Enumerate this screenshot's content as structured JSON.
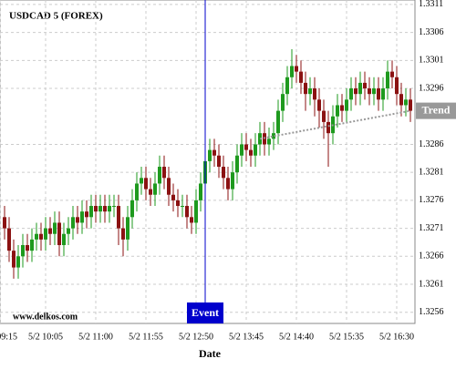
{
  "chart_data": {
    "type": "candlestick",
    "title": "USDCAD 5 (FOREX)",
    "x_label": "Date",
    "watermark": "www.delkos.com",
    "x": [
      "5/2 09:20",
      "5/2 09:25",
      "5/2 09:30",
      "5/2 09:35",
      "5/2 09:40",
      "5/2 09:45",
      "5/2 09:50",
      "5/2 09:55",
      "5/2 10:00",
      "5/2 10:05",
      "5/2 10:10",
      "5/2 10:15",
      "5/2 10:20",
      "5/2 10:25",
      "5/2 10:30",
      "5/2 10:35",
      "5/2 10:40",
      "5/2 10:45",
      "5/2 10:50",
      "5/2 10:55",
      "5/2 11:00",
      "5/2 11:05",
      "5/2 11:10",
      "5/2 11:15",
      "5/2 11:20",
      "5/2 11:25",
      "5/2 11:30",
      "5/2 11:35",
      "5/2 11:40",
      "5/2 11:45",
      "5/2 11:50",
      "5/2 11:55",
      "5/2 12:00",
      "5/2 12:05",
      "5/2 12:10",
      "5/2 12:15",
      "5/2 12:20",
      "5/2 12:25",
      "5/2 12:30",
      "5/2 12:35",
      "5/2 12:40",
      "5/2 12:45",
      "5/2 12:50",
      "5/2 12:55",
      "5/2 13:00",
      "5/2 13:05",
      "5/2 13:10",
      "5/2 13:15",
      "5/2 13:20",
      "5/2 13:25",
      "5/2 13:30",
      "5/2 13:35",
      "5/2 13:40",
      "5/2 13:45",
      "5/2 13:50",
      "5/2 13:55",
      "5/2 14:00",
      "5/2 14:05",
      "5/2 14:10",
      "5/2 14:15",
      "5/2 14:20",
      "5/2 14:25",
      "5/2 14:30",
      "5/2 14:35",
      "5/2 14:40",
      "5/2 14:45",
      "5/2 14:50",
      "5/2 14:55",
      "5/2 15:00",
      "5/2 15:05",
      "5/2 15:10",
      "5/2 15:15",
      "5/2 15:20",
      "5/2 15:25",
      "5/2 15:30",
      "5/2 15:35",
      "5/2 15:40",
      "5/2 15:45",
      "5/2 15:50",
      "5/2 15:55",
      "5/2 16:00",
      "5/2 16:05",
      "5/2 16:10",
      "5/2 16:15",
      "5/2 16:20",
      "5/2 16:25",
      "5/2 16:30",
      "5/2 16:35",
      "5/2 16:40",
      "5/2 16:45"
    ],
    "open": [
      1.3273,
      1.3271,
      1.3267,
      1.3264,
      1.3266,
      1.3268,
      1.3267,
      1.3269,
      1.327,
      1.3269,
      1.3271,
      1.327,
      1.3272,
      1.3268,
      1.327,
      1.3271,
      1.3273,
      1.3272,
      1.3274,
      1.3273,
      1.3275,
      1.3274,
      1.3275,
      1.3274,
      1.3275,
      1.3275,
      1.3271,
      1.3269,
      1.3273,
      1.3276,
      1.3279,
      1.328,
      1.3278,
      1.3277,
      1.3279,
      1.3282,
      1.328,
      1.3277,
      1.3276,
      1.3275,
      1.3275,
      1.3273,
      1.3272,
      1.3276,
      1.3279,
      1.3283,
      1.3285,
      1.3284,
      1.3282,
      1.328,
      1.3278,
      1.3281,
      1.3284,
      1.3286,
      1.3285,
      1.3284,
      1.3286,
      1.3288,
      1.3286,
      1.3287,
      1.3288,
      1.3292,
      1.3295,
      1.3298,
      1.33,
      1.3299,
      1.3297,
      1.3295,
      1.3296,
      1.3294,
      1.3292,
      1.329,
      1.3288,
      1.3291,
      1.3293,
      1.3292,
      1.3294,
      1.3296,
      1.3295,
      1.3297,
      1.3296,
      1.3295,
      1.3296,
      1.3294,
      1.3296,
      1.3299,
      1.3298,
      1.3295,
      1.3293,
      1.3294
    ],
    "high": [
      1.3275,
      1.3273,
      1.3269,
      1.3268,
      1.327,
      1.327,
      1.3271,
      1.3272,
      1.3272,
      1.3273,
      1.3273,
      1.3274,
      1.3274,
      1.3272,
      1.3273,
      1.3275,
      1.3275,
      1.3276,
      1.3276,
      1.3277,
      1.3277,
      1.3277,
      1.3277,
      1.3277,
      1.3277,
      1.3277,
      1.3273,
      1.3275,
      1.3278,
      1.3281,
      1.3282,
      1.3282,
      1.328,
      1.3281,
      1.3284,
      1.3284,
      1.3282,
      1.3279,
      1.3278,
      1.3277,
      1.3277,
      1.3275,
      1.3278,
      1.3281,
      1.3285,
      1.3287,
      1.3287,
      1.3286,
      1.3284,
      1.3282,
      1.3283,
      1.3286,
      1.3288,
      1.3288,
      1.3287,
      1.3288,
      1.329,
      1.329,
      1.3289,
      1.329,
      1.3294,
      1.3297,
      1.33,
      1.3303,
      1.3302,
      1.3301,
      1.3299,
      1.3298,
      1.3298,
      1.3296,
      1.3294,
      1.3292,
      1.3293,
      1.3295,
      1.3295,
      1.3296,
      1.3298,
      1.3298,
      1.3299,
      1.3299,
      1.3298,
      1.3298,
      1.3298,
      1.3298,
      1.3301,
      1.3301,
      1.33,
      1.3297,
      1.3296,
      1.3296
    ],
    "low": [
      1.3269,
      1.3265,
      1.3262,
      1.3262,
      1.3264,
      1.3265,
      1.3265,
      1.3267,
      1.3267,
      1.3267,
      1.3268,
      1.3268,
      1.3266,
      1.3266,
      1.3268,
      1.3269,
      1.327,
      1.327,
      1.3271,
      1.3271,
      1.3272,
      1.3272,
      1.3272,
      1.3272,
      1.3273,
      1.3268,
      1.3266,
      1.3267,
      1.3271,
      1.3274,
      1.3277,
      1.3276,
      1.3275,
      1.3275,
      1.3277,
      1.3278,
      1.3275,
      1.3274,
      1.3273,
      1.3273,
      1.3271,
      1.327,
      1.327,
      1.3274,
      1.3277,
      1.3281,
      1.3282,
      1.328,
      1.3278,
      1.3276,
      1.3276,
      1.3279,
      1.3282,
      1.3283,
      1.3282,
      1.3282,
      1.3284,
      1.3284,
      1.3284,
      1.3285,
      1.3286,
      1.329,
      1.3293,
      1.3296,
      1.3297,
      1.3295,
      1.3292,
      1.3293,
      1.3291,
      1.3289,
      1.3287,
      1.3282,
      1.3286,
      1.3289,
      1.329,
      1.329,
      1.3292,
      1.3293,
      1.3293,
      1.3294,
      1.3293,
      1.3293,
      1.3292,
      1.3292,
      1.3294,
      1.3296,
      1.3293,
      1.3291,
      1.3291,
      1.329
    ],
    "close": [
      1.3271,
      1.3267,
      1.3264,
      1.3266,
      1.3268,
      1.3267,
      1.3269,
      1.327,
      1.3269,
      1.3271,
      1.327,
      1.3272,
      1.3268,
      1.327,
      1.3271,
      1.3273,
      1.3272,
      1.3274,
      1.3273,
      1.3275,
      1.3274,
      1.3275,
      1.3274,
      1.3275,
      1.3275,
      1.3271,
      1.3269,
      1.3273,
      1.3276,
      1.3279,
      1.328,
      1.3278,
      1.3277,
      1.3279,
      1.3282,
      1.328,
      1.3277,
      1.3276,
      1.3275,
      1.3275,
      1.3273,
      1.3272,
      1.3276,
      1.3279,
      1.3283,
      1.3285,
      1.3284,
      1.3282,
      1.328,
      1.3278,
      1.3281,
      1.3284,
      1.3286,
      1.3285,
      1.3284,
      1.3286,
      1.3288,
      1.3286,
      1.3287,
      1.3288,
      1.3292,
      1.3295,
      1.3298,
      1.33,
      1.3299,
      1.3297,
      1.3295,
      1.3296,
      1.3294,
      1.3292,
      1.329,
      1.3288,
      1.3291,
      1.3293,
      1.3292,
      1.3294,
      1.3296,
      1.3295,
      1.3297,
      1.3296,
      1.3295,
      1.3296,
      1.3294,
      1.3296,
      1.3299,
      1.3298,
      1.3295,
      1.3293,
      1.3294,
      1.3292
    ],
    "up_color": "#1e9a1e",
    "down_color": "#8b1212",
    "xlim": [
      "5/2 09:15",
      "5/2 16:50"
    ],
    "xticks": [
      "5/2 09:15",
      "5/2 10:05",
      "5/2 11:00",
      "5/2 11:55",
      "5/2 12:50",
      "5/2 13:45",
      "5/2 14:40",
      "5/2 15:35",
      "5/2 16:30"
    ],
    "ylim": [
      1.3254,
      1.33118
    ],
    "yticks": [
      1.3256,
      1.3261,
      1.3266,
      1.3271,
      1.3276,
      1.3281,
      1.3286,
      1.3296,
      1.3301,
      1.3306,
      1.3311
    ],
    "grid": true,
    "event": {
      "label": "Event",
      "x": "5/2 13:00",
      "color": "#0000cc"
    },
    "trend": {
      "label": "Trend",
      "x": [
        "5/2 14:00",
        "5/2 16:45"
      ],
      "values": [
        1.3287,
        1.3292
      ],
      "color": "#999999"
    }
  }
}
